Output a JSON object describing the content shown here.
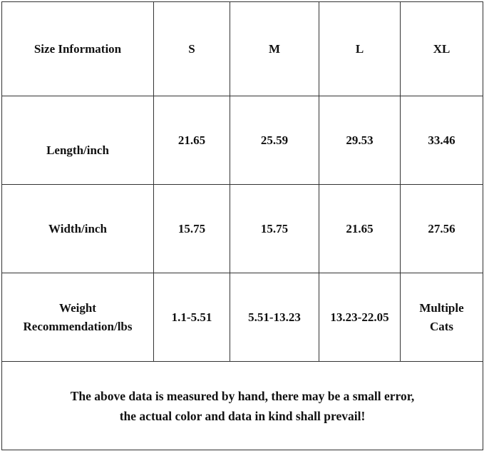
{
  "table": {
    "header": [
      "Size Information",
      "S",
      "M",
      "L",
      "XL"
    ],
    "rows": [
      {
        "label": "Length/inch",
        "values": [
          "21.65",
          "25.59",
          "29.53",
          "33.46"
        ]
      },
      {
        "label": "Width/inch",
        "values": [
          "15.75",
          "15.75",
          "21.65",
          "27.56"
        ]
      },
      {
        "label_line1": "Weight",
        "label_line2": "Recommendation/lbs",
        "values": [
          "1.1-5.51",
          "5.51-13.23",
          "13.23-22.05"
        ],
        "xl_line1": "Multiple",
        "xl_line2": "Cats"
      }
    ],
    "note_line1": "The above data is measured by hand, there may be a small error,",
    "note_line2": "the actual color and data in kind shall prevail!"
  }
}
